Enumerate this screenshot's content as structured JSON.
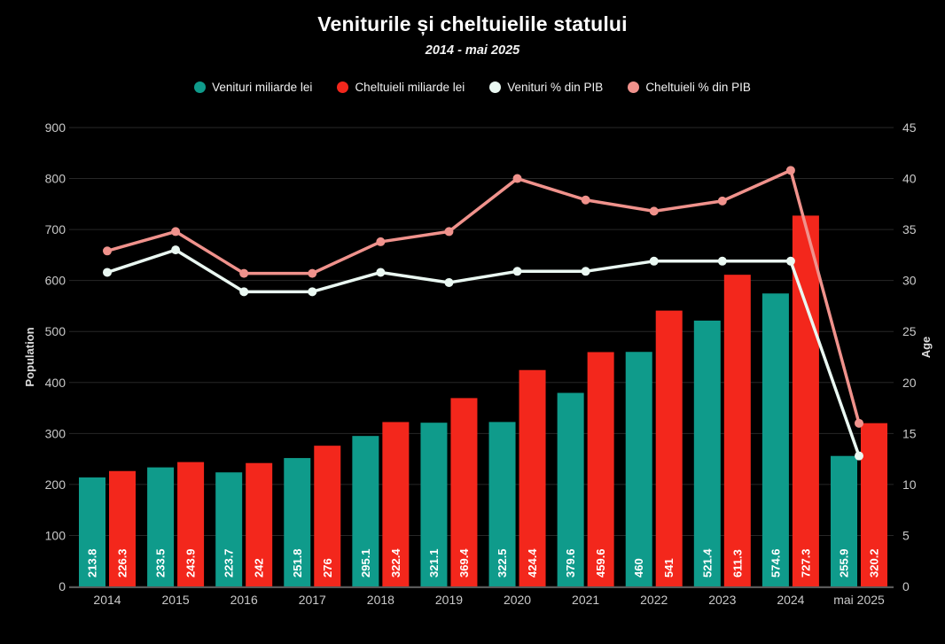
{
  "header": {
    "title": "Veniturile și cheltuielile statului",
    "subtitle": "2014 - mai 2025"
  },
  "chart_data": {
    "type": "combo-bar-line",
    "title": "Veniturile și cheltuielile statului",
    "subtitle": "2014 - mai 2025",
    "categories": [
      "2014",
      "2015",
      "2016",
      "2017",
      "2018",
      "2019",
      "2020",
      "2021",
      "2022",
      "2023",
      "2024",
      "mai 2025"
    ],
    "series": [
      {
        "name": "Venituri miliarde lei",
        "type": "bar",
        "axis": "left",
        "color": "#0f9b8b",
        "values": [
          213.8,
          233.5,
          223.7,
          251.8,
          295.1,
          321.1,
          322.5,
          379.6,
          460,
          521.4,
          574.6,
          255.9
        ],
        "labels": [
          "213.8",
          "233.5",
          "223.7",
          "251.8",
          "295.1",
          "321.1",
          "322.5",
          "379.6",
          "460",
          "521.4",
          "574.6",
          "255.9"
        ]
      },
      {
        "name": "Cheltuieli miliarde lei",
        "type": "bar",
        "axis": "left",
        "color": "#f3271c",
        "values": [
          226.3,
          243.9,
          242,
          276,
          322.4,
          369.4,
          424.4,
          459.6,
          541,
          611.3,
          727.3,
          320.2
        ],
        "labels": [
          "226.3",
          "243.9",
          "242",
          "276",
          "322.4",
          "369.4",
          "424.4",
          "459.6",
          "541",
          "611.3",
          "727.3",
          "320.2"
        ]
      },
      {
        "name": "Venituri % din PIB",
        "type": "line",
        "axis": "right",
        "color": "#eaf8f2",
        "values": [
          30.8,
          33.0,
          28.9,
          28.9,
          30.8,
          29.8,
          30.9,
          30.9,
          31.9,
          31.9,
          31.9,
          12.8
        ]
      },
      {
        "name": "Cheltuieli % din PIB",
        "type": "line",
        "axis": "right",
        "color": "#f0928c",
        "values": [
          32.9,
          34.8,
          30.7,
          30.7,
          33.8,
          34.8,
          40.0,
          37.9,
          36.8,
          37.8,
          40.8,
          16.0
        ]
      }
    ],
    "left_axis": {
      "label": "Population",
      "min": 0,
      "max": 900,
      "step": 100
    },
    "right_axis": {
      "label": "Age",
      "min": 0,
      "max": 45,
      "step": 5
    },
    "grid": true,
    "legend_position": "top",
    "bar_value_labels": true,
    "colors": {
      "background": "#000000",
      "gridline": "#272727",
      "axis_line": "#585858",
      "tick_text": "#c9c9c9"
    }
  }
}
